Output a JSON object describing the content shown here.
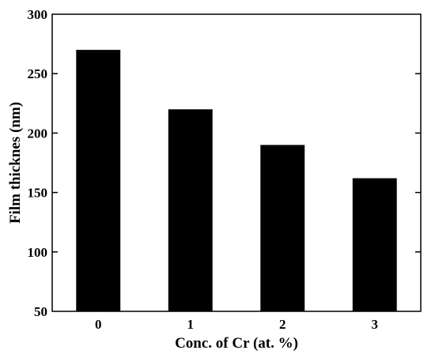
{
  "chart_data": {
    "type": "bar",
    "categories": [
      "0",
      "1",
      "2",
      "3"
    ],
    "values": [
      270,
      220,
      190,
      162
    ],
    "title": "",
    "xlabel": "Conc. of Cr (at. %)",
    "ylabel": "Film thicknes (nm)",
    "ylim": [
      50,
      300
    ],
    "yticks": [
      "50",
      "100",
      "150",
      "200",
      "250",
      "300"
    ],
    "grid": false,
    "bar_color": "#000000"
  }
}
